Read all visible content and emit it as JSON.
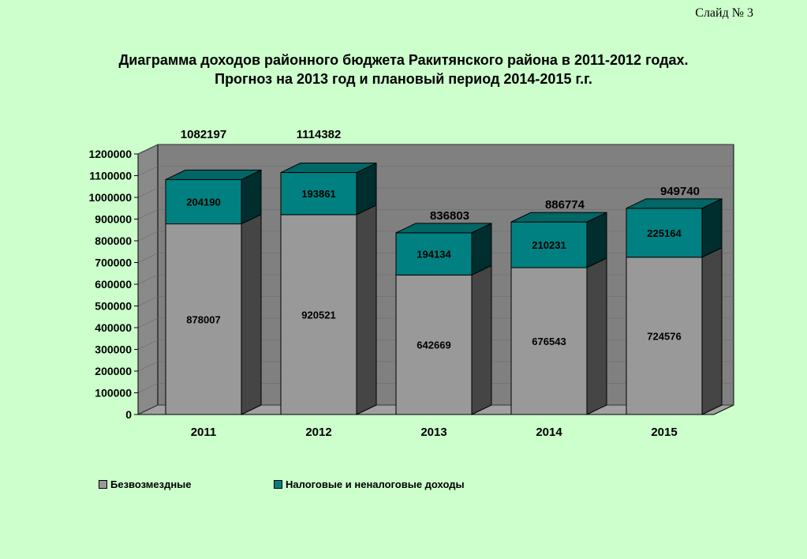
{
  "slide_label": "Слайд № 3",
  "title_line1": "Диаграмма доходов районного бюджета Ракитянского района в 2011-2012 годах.",
  "title_line2": "Прогноз на 2013 год и плановый период 2014-2015 г.г.",
  "chart_data": {
    "type": "bar",
    "stacked": true,
    "categories": [
      "2011",
      "2012",
      "2013",
      "2014",
      "2015"
    ],
    "series": [
      {
        "name": "Безвозмездные",
        "color": "#999999",
        "values": [
          878007,
          920521,
          642669,
          676543,
          724576
        ]
      },
      {
        "name": "Налоговые и неналоговые доходы",
        "color": "#008080",
        "values": [
          204190,
          193861,
          194134,
          210231,
          225164
        ]
      }
    ],
    "totals": [
      1082197,
      1114382,
      836803,
      886774,
      949740
    ],
    "ylim": [
      0,
      1200000
    ],
    "yticks": [
      0,
      100000,
      200000,
      300000,
      400000,
      500000,
      600000,
      700000,
      800000,
      900000,
      1000000,
      1100000,
      1200000
    ],
    "legend_position": "bottom"
  }
}
